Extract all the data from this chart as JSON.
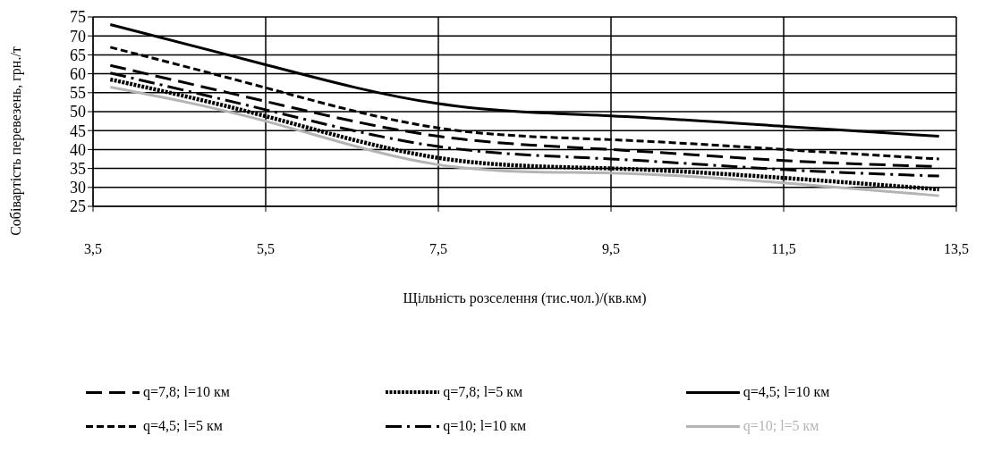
{
  "chart_data": {
    "type": "line",
    "xlabel": "Щільність розселення (тис.чол.)/(кв.км)",
    "ylabel": "Собівартість перевезень, грн./т",
    "x": [
      3.7,
      5.5,
      7.5,
      9.5,
      11.5,
      13.3
    ],
    "xlim": [
      3.5,
      13.5
    ],
    "xticks": [
      {
        "value": 3.5,
        "label": "3,5"
      },
      {
        "value": 5.5,
        "label": "5,5"
      },
      {
        "value": 7.5,
        "label": "7,5"
      },
      {
        "value": 9.5,
        "label": "9,5"
      },
      {
        "value": 11.5,
        "label": "11,5"
      },
      {
        "value": 13.5,
        "label": "13,5"
      }
    ],
    "ylim": [
      25,
      75
    ],
    "yticks": [
      25,
      30,
      35,
      40,
      45,
      50,
      55,
      60,
      65,
      70,
      75
    ],
    "grid": true,
    "legend": "bottom",
    "marker": "none",
    "series": [
      {
        "name": "q=7,8; l=10 км",
        "color": "#000000",
        "line_style": "longdash",
        "values": [
          62.2,
          52.7,
          43.5,
          40,
          37.1,
          35.5
        ]
      },
      {
        "name": "q=7,8; l=5 км",
        "color": "#000000",
        "line_style": "dotted",
        "values": [
          58.5,
          48.8,
          37.8,
          35,
          32.5,
          29.5
        ]
      },
      {
        "name": "q=4,5; l=10 км",
        "color": "#000000",
        "line_style": "solid",
        "values": [
          73,
          62.4,
          52.1,
          48.9,
          46.1,
          43.5
        ]
      },
      {
        "name": "q=4,5; l=5 км",
        "color": "#000000",
        "line_style": "dashed",
        "values": [
          67,
          56.3,
          45.7,
          42.6,
          40,
          37.5
        ]
      },
      {
        "name": "q=10; l=10 км",
        "color": "#000000",
        "line_style": "dashdot",
        "values": [
          60.2,
          50.5,
          40.8,
          37.5,
          34.7,
          33
        ]
      },
      {
        "name": "q=10; l=5 км",
        "color": "#b4b4b4",
        "line_style": "solid",
        "values": [
          56.5,
          47.5,
          36,
          33.8,
          31.2,
          27.8
        ]
      }
    ]
  }
}
